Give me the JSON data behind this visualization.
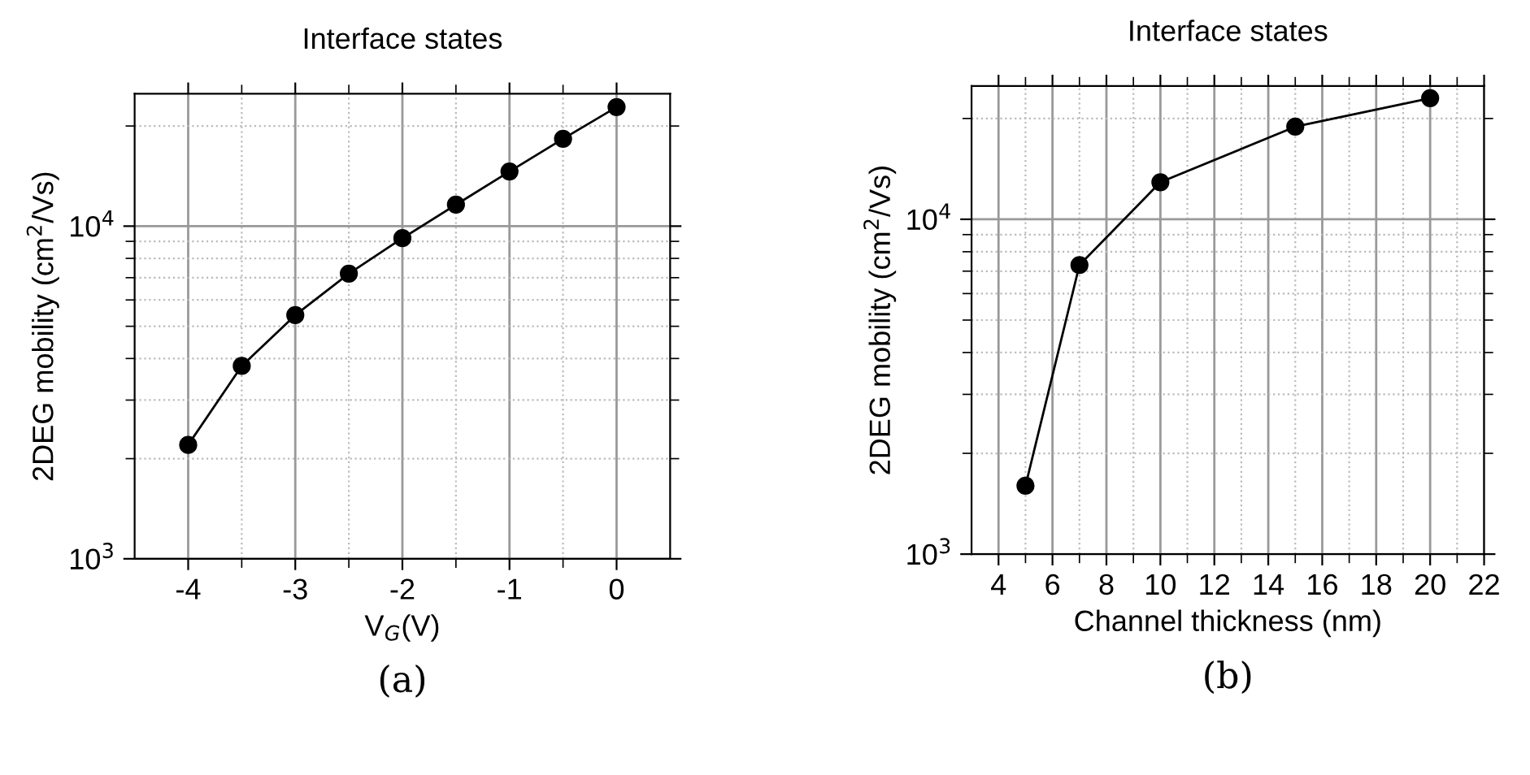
{
  "chart_data": [
    {
      "type": "line",
      "title": "Interface states",
      "xlabel": "V$_{G}$(V)",
      "ylabel": "2DEG mobility (cm$^{2}$/Vs)",
      "log": "y",
      "grid": true,
      "marker": "circle",
      "line_style": "solid",
      "legend": false,
      "x": [
        -4,
        -3.5,
        -3,
        -2.5,
        -2,
        -1.5,
        -1,
        -0.5,
        0
      ],
      "series": [
        {
          "color": "#000000",
          "values": [
            2200,
            3800,
            5400,
            7200,
            9200,
            11600,
            14600,
            18300,
            22800
          ]
        }
      ],
      "xlim": [
        -4.5,
        0.5
      ],
      "xticks": [
        -4,
        {
          "value": -3.5,
          "label": null
        },
        -3,
        {
          "value": -2.5,
          "label": null
        },
        -2,
        {
          "value": -1.5,
          "label": null
        },
        -1,
        {
          "value": -0.5,
          "label": null
        },
        0
      ],
      "ylim": [
        1000,
        25000
      ],
      "yticks": [
        {
          "value": 1000,
          "label": "10$^{3}$"
        },
        {
          "value": 2000,
          "label": null
        },
        {
          "value": 3000,
          "label": null
        },
        {
          "value": 4000,
          "label": null
        },
        {
          "value": 5000,
          "label": null
        },
        {
          "value": 6000,
          "label": null
        },
        {
          "value": 7000,
          "label": null
        },
        {
          "value": 8000,
          "label": null
        },
        {
          "value": 9000,
          "label": null
        },
        {
          "value": 10000,
          "label": "10$^{4}$"
        },
        {
          "value": 20000,
          "label": null
        }
      ],
      "annotations": [
        "(a)"
      ]
    },
    {
      "type": "line",
      "title": "Interface states",
      "xlabel": "Channel thickness (nm)",
      "ylabel": "2DEG mobility (cm$^{2}$/Vs)",
      "log": "y",
      "grid": true,
      "marker": "circle",
      "line_style": "solid",
      "legend": false,
      "x": [
        5,
        7,
        10,
        15,
        20
      ],
      "series": [
        {
          "color": "#000000",
          "values": [
            1600,
            7300,
            12900,
            18900,
            23000
          ]
        }
      ],
      "xlim": [
        3,
        22
      ],
      "xticks": [
        4,
        {
          "value": 5,
          "label": null
        },
        6,
        {
          "value": 7,
          "label": null
        },
        8,
        {
          "value": 9,
          "label": null
        },
        10,
        {
          "value": 11,
          "label": null
        },
        12,
        {
          "value": 13,
          "label": null
        },
        14,
        {
          "value": 15,
          "label": null
        },
        16,
        {
          "value": 17,
          "label": null
        },
        18,
        {
          "value": 19,
          "label": null
        },
        20,
        {
          "value": 21,
          "label": null
        },
        22
      ],
      "ylim": [
        1000,
        25000
      ],
      "yticks": [
        {
          "value": 1000,
          "label": "10$^{3}$"
        },
        {
          "value": 2000,
          "label": null
        },
        {
          "value": 3000,
          "label": null
        },
        {
          "value": 4000,
          "label": null
        },
        {
          "value": 5000,
          "label": null
        },
        {
          "value": 6000,
          "label": null
        },
        {
          "value": 7000,
          "label": null
        },
        {
          "value": 8000,
          "label": null
        },
        {
          "value": 9000,
          "label": null
        },
        {
          "value": 10000,
          "label": "10$^{4}$"
        },
        {
          "value": 20000,
          "label": null
        }
      ],
      "annotations": [
        "(b)"
      ]
    }
  ]
}
